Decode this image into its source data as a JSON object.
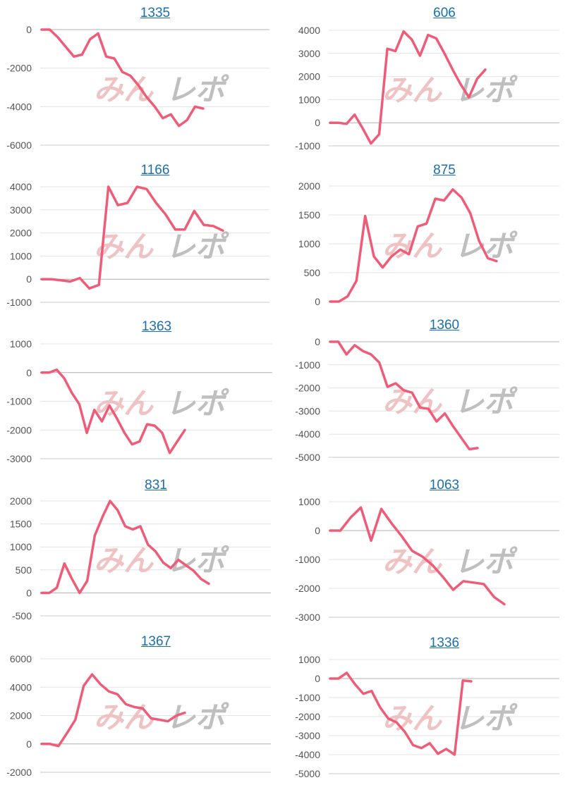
{
  "colors": {
    "series": "#ef5c78",
    "title": "#1a6fb0",
    "watermark_pink": "#eebcbd",
    "watermark_gray": "#b9b9b9"
  },
  "watermark": {
    "text": "みんレポ"
  },
  "chart_data": [
    {
      "type": "line",
      "title": "1335",
      "ylim": [
        -6000,
        0
      ],
      "yticks": [
        0,
        -2000,
        -4000,
        -6000
      ],
      "values": [
        0,
        0,
        -400,
        -900,
        -1400,
        -1300,
        -500,
        -200,
        -1400,
        -1500,
        -2200,
        -2400,
        -2900,
        -3500,
        -4000,
        -4600,
        -4400,
        -5000,
        -4700,
        -4000,
        -4100
      ]
    },
    {
      "type": "line",
      "title": "606",
      "ylim": [
        -1000,
        4000
      ],
      "yticks": [
        4000,
        3000,
        2000,
        1000,
        0,
        -1000
      ],
      "values": [
        0,
        0,
        -50,
        350,
        -250,
        -900,
        -500,
        3200,
        3100,
        3950,
        3600,
        2900,
        3800,
        3650,
        3000,
        2300,
        1650,
        1100,
        1900,
        2300
      ]
    },
    {
      "type": "line",
      "title": "1166",
      "ylim": [
        -1000,
        4000
      ],
      "yticks": [
        4000,
        3000,
        2000,
        1000,
        0,
        -1000
      ],
      "values": [
        0,
        0,
        -50,
        -100,
        50,
        -400,
        -250,
        4000,
        3200,
        3300,
        4000,
        3900,
        3300,
        2800,
        2150,
        2150,
        2950,
        2350,
        2300,
        2100
      ]
    },
    {
      "type": "line",
      "title": "875",
      "ylim": [
        0,
        2000
      ],
      "yticks": [
        2000,
        1500,
        1000,
        500,
        0
      ],
      "values": [
        0,
        0,
        90,
        360,
        1480,
        780,
        590,
        780,
        900,
        820,
        1300,
        1350,
        1780,
        1750,
        1940,
        1800,
        1530,
        1050,
        750,
        700
      ]
    },
    {
      "type": "line",
      "title": "1363",
      "ylim": [
        -3000,
        1000
      ],
      "yticks": [
        1000,
        0,
        -1000,
        -2000,
        -3000
      ],
      "values": [
        0,
        0,
        100,
        -200,
        -700,
        -1100,
        -2100,
        -1300,
        -1700,
        -1150,
        -1600,
        -2100,
        -2500,
        -2400,
        -1800,
        -1850,
        -2100,
        -2800,
        -2400,
        -2000
      ]
    },
    {
      "type": "line",
      "title": "1360",
      "ylim": [
        -5000,
        0
      ],
      "yticks": [
        0,
        -1000,
        -2000,
        -3000,
        -4000,
        -5000
      ],
      "values": [
        0,
        0,
        -550,
        -150,
        -400,
        -550,
        -900,
        -1950,
        -1800,
        -2100,
        -2200,
        -2850,
        -2900,
        -3450,
        -3100,
        -3650,
        -4150,
        -4650,
        -4600
      ]
    },
    {
      "type": "line",
      "title": "831",
      "ylim": [
        -500,
        2000
      ],
      "yticks": [
        2000,
        1500,
        1000,
        500,
        0,
        -500
      ],
      "values": [
        0,
        0,
        110,
        640,
        300,
        0,
        260,
        1250,
        1650,
        2000,
        1800,
        1450,
        1380,
        1450,
        1050,
        900,
        660,
        540,
        720,
        600,
        480,
        300,
        200
      ]
    },
    {
      "type": "line",
      "title": "1063",
      "ylim": [
        -3000,
        1000
      ],
      "yticks": [
        1000,
        0,
        -1000,
        -2000,
        -3000
      ],
      "values": [
        0,
        0,
        450,
        800,
        -350,
        750,
        250,
        -200,
        -700,
        -900,
        -1200,
        -1600,
        -2050,
        -1750,
        -1800,
        -1850,
        -2300,
        -2550
      ]
    },
    {
      "type": "line",
      "title": "1367",
      "ylim": [
        -2000,
        6000
      ],
      "yticks": [
        6000,
        4000,
        2000,
        0,
        -2000
      ],
      "values": [
        0,
        0,
        -150,
        750,
        1700,
        4100,
        4900,
        4200,
        3700,
        3500,
        2800,
        2600,
        2500,
        1800,
        1700,
        1600,
        2000,
        2200
      ]
    },
    {
      "type": "line",
      "title": "1336",
      "ylim": [
        -5000,
        1000
      ],
      "yticks": [
        1000,
        0,
        -1000,
        -2000,
        -3000,
        -4000,
        -5000
      ],
      "values": [
        0,
        0,
        300,
        -300,
        -800,
        -650,
        -1500,
        -2100,
        -2300,
        -2800,
        -3500,
        -3650,
        -3400,
        -3950,
        -3700,
        -4000,
        -100,
        -150
      ]
    }
  ]
}
